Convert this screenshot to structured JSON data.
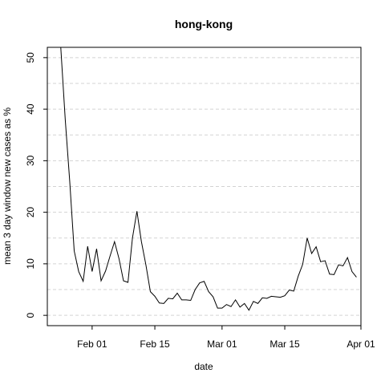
{
  "chart_data": {
    "type": "line",
    "title": "hong-kong",
    "xlabel": "date",
    "ylabel": "mean  3  day window new cases as %",
    "x_tick_labels": [
      {
        "date": "2020-02-01",
        "label": "Feb 01"
      },
      {
        "date": "2020-02-15",
        "label": "Feb 15"
      },
      {
        "date": "2020-03-01",
        "label": "Mar 01"
      },
      {
        "date": "2020-03-15",
        "label": "Mar 15"
      },
      {
        "date": "2020-04-01",
        "label": "Apr 01"
      }
    ],
    "y_ticks": [
      0,
      10,
      20,
      30,
      40,
      50
    ],
    "ylim": [
      -2,
      52
    ],
    "xlim": [
      "2020-01-22",
      "2020-04-01"
    ],
    "grid": {
      "horizontal_dashed": true,
      "values": [
        0,
        5,
        10,
        15,
        20,
        25,
        30,
        35,
        40,
        45,
        50
      ]
    },
    "line_color": "#000000",
    "series": [
      {
        "x": [
          "2020-01-25",
          "2020-01-26",
          "2020-01-27",
          "2020-01-28",
          "2020-01-29",
          "2020-01-30",
          "2020-01-31",
          "2020-02-01",
          "2020-02-02",
          "2020-02-03",
          "2020-02-04",
          "2020-02-05",
          "2020-02-06",
          "2020-02-07",
          "2020-02-08",
          "2020-02-09",
          "2020-02-10",
          "2020-02-11",
          "2020-02-12",
          "2020-02-13",
          "2020-02-14",
          "2020-02-15",
          "2020-02-16",
          "2020-02-17",
          "2020-02-18",
          "2020-02-19",
          "2020-02-20",
          "2020-02-21",
          "2020-02-22",
          "2020-02-23",
          "2020-02-24",
          "2020-02-25",
          "2020-02-26",
          "2020-02-27",
          "2020-02-28",
          "2020-02-29",
          "2020-03-01",
          "2020-03-02",
          "2020-03-03",
          "2020-03-04",
          "2020-03-05",
          "2020-03-06",
          "2020-03-07",
          "2020-03-08",
          "2020-03-09",
          "2020-03-10",
          "2020-03-11",
          "2020-03-12",
          "2020-03-13",
          "2020-03-14",
          "2020-03-15",
          "2020-03-16",
          "2020-03-17",
          "2020-03-18",
          "2020-03-19",
          "2020-03-20",
          "2020-03-21",
          "2020-03-22",
          "2020-03-23",
          "2020-03-24",
          "2020-03-25",
          "2020-03-26",
          "2020-03-27",
          "2020-03-28",
          "2020-03-29",
          "2020-03-30",
          "2020-03-31"
        ],
        "values": [
          53.0,
          38.0,
          26.0,
          12.5,
          8.5,
          6.6,
          13.4,
          8.5,
          12.9,
          6.7,
          8.6,
          11.5,
          14.3,
          11.0,
          6.7,
          6.4,
          15.0,
          20.2,
          14.3,
          9.8,
          4.6,
          3.7,
          2.4,
          2.3,
          3.3,
          3.2,
          4.3,
          3.0,
          3.0,
          2.9,
          5.0,
          6.3,
          6.6,
          4.6,
          3.6,
          1.4,
          1.4,
          2.1,
          1.7,
          3.0,
          1.6,
          2.3,
          1.0,
          2.7,
          2.3,
          3.4,
          3.3,
          3.7,
          3.6,
          3.5,
          3.8,
          4.9,
          4.7,
          7.6,
          9.9,
          15.0,
          12.0,
          13.3,
          10.4,
          10.6,
          8.0,
          7.9,
          9.8,
          9.6,
          11.2,
          8.5,
          7.4
        ]
      }
    ]
  }
}
